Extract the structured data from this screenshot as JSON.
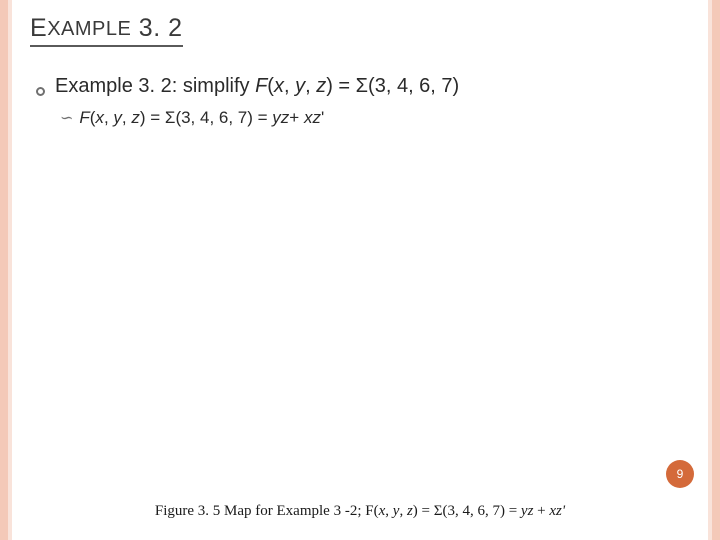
{
  "title_main": "E",
  "title_rest": "XAMPLE",
  "title_num": " 3. 2",
  "line1_parts": {
    "pre": "Example 3. 2: simplify ",
    "F": "F",
    "args_open": "(",
    "x": "x",
    "c1": ", ",
    "y": "y",
    "c2": ", ",
    "z": "z",
    "args_close": ") = ",
    "sigma": "Σ",
    "set": "(3, 4, 6, 7)"
  },
  "line2_parts": {
    "F": "F",
    "args_open": "(",
    "x": "x",
    "c1": ", ",
    "y": "y",
    "c2": ", ",
    "z": "z",
    "args_close": ") = ",
    "sigma": "Σ",
    "set": "(3, 4, 6, 7) = ",
    "yz": "yz",
    "plus": "+ ",
    "xz": "xz",
    "prime": "'"
  },
  "page_number": "9",
  "caption_parts": {
    "pre": "Figure 3. 5 Map for Example 3 -2; F(",
    "x": "x",
    "c1": ", ",
    "y": "y",
    "c2": ", ",
    "z": "z",
    "mid": ") = Σ(3, 4, 6, 7) = ",
    "yz": "yz",
    "plus": " + ",
    "xz": "xz",
    "prime": "'"
  },
  "colors": {
    "border_outer": "#f4c9b8",
    "border_inner": "#f9e3da",
    "badge": "#d46a3a"
  }
}
